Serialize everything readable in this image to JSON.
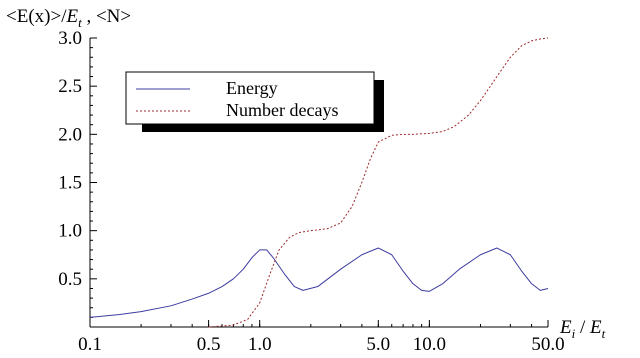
{
  "chart_data": {
    "type": "line",
    "x_scale": "log",
    "xlim": [
      0.1,
      50.0
    ],
    "ylim": [
      0.0,
      3.0
    ],
    "x_ticks": [
      {
        "value": 0.1,
        "label": "0.1"
      },
      {
        "value": 0.5,
        "label": "0.5"
      },
      {
        "value": 1.0,
        "label": "1.0"
      },
      {
        "value": 5.0,
        "label": "5.0"
      },
      {
        "value": 10.0,
        "label": "10.0"
      },
      {
        "value": 50.0,
        "label": "50.0"
      }
    ],
    "y_ticks": [
      {
        "value": 0.5,
        "label": "0.5"
      },
      {
        "value": 1.0,
        "label": "1.0"
      },
      {
        "value": 1.5,
        "label": "1.5"
      },
      {
        "value": 2.0,
        "label": "2.0"
      },
      {
        "value": 2.5,
        "label": "2.5"
      },
      {
        "value": 3.0,
        "label": "3.0"
      }
    ],
    "ylabel_parts": [
      "<E(x)>/",
      "E",
      "t",
      " , <N>"
    ],
    "xlabel_parts": [
      "E",
      "i",
      " / ",
      "E",
      "t"
    ],
    "grid": false,
    "legend_position": "top-left",
    "series": [
      {
        "name": "Energy",
        "color": "#3c3ca0",
        "dash": "solid",
        "points": [
          [
            0.1,
            0.1
          ],
          [
            0.15,
            0.13
          ],
          [
            0.2,
            0.16
          ],
          [
            0.3,
            0.22
          ],
          [
            0.4,
            0.29
          ],
          [
            0.5,
            0.35
          ],
          [
            0.6,
            0.42
          ],
          [
            0.7,
            0.5
          ],
          [
            0.8,
            0.6
          ],
          [
            0.9,
            0.72
          ],
          [
            1.0,
            0.8
          ],
          [
            1.1,
            0.8
          ],
          [
            1.2,
            0.72
          ],
          [
            1.4,
            0.55
          ],
          [
            1.6,
            0.42
          ],
          [
            1.8,
            0.38
          ],
          [
            2.2,
            0.42
          ],
          [
            3.0,
            0.6
          ],
          [
            4.0,
            0.75
          ],
          [
            5.0,
            0.82
          ],
          [
            6.0,
            0.75
          ],
          [
            7.0,
            0.58
          ],
          [
            8.0,
            0.45
          ],
          [
            9.0,
            0.38
          ],
          [
            10.0,
            0.37
          ],
          [
            12.0,
            0.45
          ],
          [
            15.0,
            0.6
          ],
          [
            20.0,
            0.75
          ],
          [
            25.0,
            0.82
          ],
          [
            30.0,
            0.75
          ],
          [
            35.0,
            0.58
          ],
          [
            40.0,
            0.45
          ],
          [
            45.0,
            0.38
          ],
          [
            50.0,
            0.4
          ]
        ]
      },
      {
        "name": "Number decays",
        "color": "#9c2a2a",
        "dash": "2,2",
        "points": [
          [
            0.5,
            0.0
          ],
          [
            0.7,
            0.02
          ],
          [
            0.85,
            0.08
          ],
          [
            1.0,
            0.25
          ],
          [
            1.15,
            0.55
          ],
          [
            1.3,
            0.8
          ],
          [
            1.5,
            0.93
          ],
          [
            1.7,
            0.98
          ],
          [
            2.0,
            1.0
          ],
          [
            2.5,
            1.02
          ],
          [
            3.0,
            1.08
          ],
          [
            3.5,
            1.25
          ],
          [
            4.0,
            1.5
          ],
          [
            4.5,
            1.75
          ],
          [
            5.0,
            1.92
          ],
          [
            6.0,
            1.99
          ],
          [
            7.0,
            2.0
          ],
          [
            8.0,
            2.0
          ],
          [
            10.0,
            2.01
          ],
          [
            12.0,
            2.03
          ],
          [
            14.0,
            2.08
          ],
          [
            17.0,
            2.2
          ],
          [
            20.0,
            2.35
          ],
          [
            25.0,
            2.6
          ],
          [
            30.0,
            2.8
          ],
          [
            35.0,
            2.92
          ],
          [
            40.0,
            2.97
          ],
          [
            45.0,
            2.99
          ],
          [
            50.0,
            3.0
          ]
        ]
      }
    ]
  }
}
